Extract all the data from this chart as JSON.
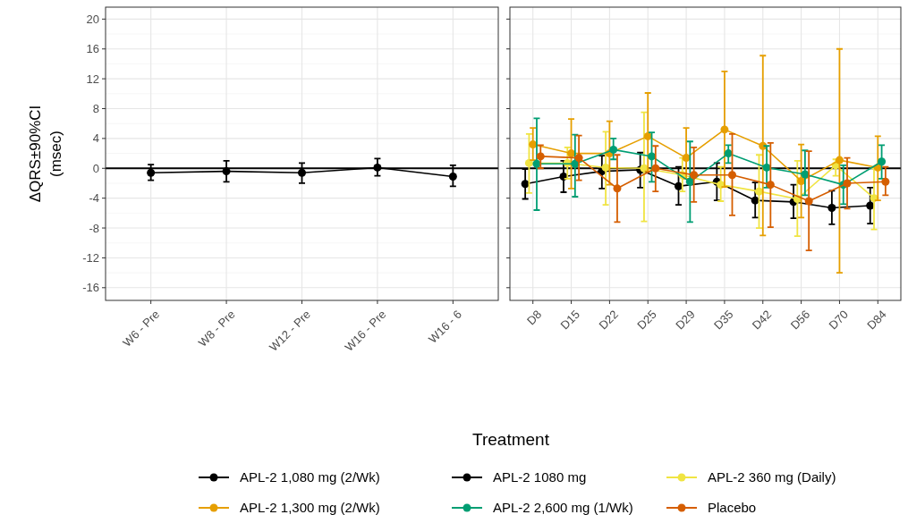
{
  "chart_data": [
    {
      "type": "line",
      "ylabel": "ΔQRS±90%CI (msec)",
      "categories": [
        "W6 - Pre",
        "W8 - Pre",
        "W12 - Pre",
        "W16 - Pre",
        "W16 - 6"
      ],
      "ylim": [
        -17.7,
        21.6
      ],
      "yticks": [
        -16,
        -12,
        -8,
        -4,
        0,
        4,
        8,
        12,
        16,
        20
      ],
      "grid": true,
      "marker": "circle",
      "legend": "bottom",
      "ref_lines": [
        {
          "axis": "y",
          "value": 0,
          "color": "#000000"
        }
      ],
      "series": [
        {
          "name": "APL-2 1080 mg",
          "color": "#000000",
          "values": [
            -0.6,
            -0.4,
            -0.6,
            0.1,
            -1.1
          ],
          "errors": [
            [
              -1.6,
              0.5
            ],
            [
              -1.8,
              1.0
            ],
            [
              -2.0,
              0.7
            ],
            [
              -1.0,
              1.3
            ],
            [
              -2.4,
              0.4
            ]
          ]
        }
      ]
    },
    {
      "type": "line",
      "legend_title": "Treatment",
      "categories": [
        "D8",
        "D15",
        "D22",
        "D25",
        "D29",
        "D35",
        "D42",
        "D56",
        "D70",
        "D84"
      ],
      "ylim": [
        -17.7,
        21.6
      ],
      "yticks": [
        -16,
        -12,
        -8,
        -4,
        0,
        4,
        8,
        12,
        16,
        20
      ],
      "tick_labels": "x",
      "grid": true,
      "marker": "circle",
      "legend": "bottom",
      "ref_lines": [
        {
          "axis": "y",
          "value": 0,
          "color": "#000000"
        }
      ],
      "series": [
        {
          "name": "APL-2 1,080 mg (2/Wk)",
          "color": "#000000",
          "values": [
            -2.1,
            -1.1,
            -0.4,
            -0.2,
            -2.4,
            -1.8,
            -4.3,
            -4.5,
            -5.3,
            -5.0
          ],
          "errors": [
            [
              -4.1,
              -0.1
            ],
            [
              -3.2,
              1.0
            ],
            [
              -2.7,
              1.7
            ],
            [
              -2.6,
              2.1
            ],
            [
              -4.9,
              0.2
            ],
            [
              -4.3,
              0.7
            ],
            [
              -6.6,
              -1.9
            ],
            [
              -6.7,
              -2.2
            ],
            [
              -7.5,
              -3.0
            ],
            [
              -7.4,
              -2.6
            ]
          ]
        },
        {
          "name": "APL-2 360 mg (Daily)",
          "color": "#f0e442",
          "values": [
            0.7,
            0.7,
            0.1,
            0.0,
            -0.9,
            -2.2,
            -3.1,
            -4.1,
            0.4,
            -4.0
          ],
          "errors": [
            [
              -3.3,
              4.6
            ],
            [
              -1.4,
              2.8
            ],
            [
              -4.9,
              4.9
            ],
            [
              -7.1,
              7.5
            ],
            [
              -3.1,
              1.4
            ],
            [
              -4.4,
              0.2
            ],
            [
              -8.0,
              1.8
            ],
            [
              -9.1,
              1.0
            ],
            [
              -1.0,
              1.2
            ],
            [
              -8.2,
              0.0
            ]
          ]
        },
        {
          "name": "APL-2 1,300 mg (2/Wk)",
          "color": "#e69f00",
          "values": [
            3.2,
            2.0,
            2.0,
            4.3,
            1.4,
            5.2,
            3.0,
            -1.7,
            1.1,
            0.1
          ],
          "errors": [
            [
              1.1,
              5.4
            ],
            [
              -2.7,
              6.6
            ],
            [
              -2.2,
              6.3
            ],
            [
              -0.4,
              10.1
            ],
            [
              -1.4,
              5.4
            ],
            [
              -2.5,
              13.0
            ],
            [
              -9.0,
              15.1
            ],
            [
              -6.6,
              3.2
            ],
            [
              -14.0,
              16.0
            ],
            [
              -4.3,
              4.3
            ]
          ]
        },
        {
          "name": "APL-2 2,600 mg (1/Wk)",
          "color": "#009e73",
          "values": [
            0.6,
            0.6,
            2.5,
            1.6,
            -1.8,
            2.0,
            0.1,
            -0.8,
            -2.2,
            0.9
          ],
          "errors": [
            [
              -5.6,
              6.7
            ],
            [
              -3.8,
              4.5
            ],
            [
              1.2,
              4.0
            ],
            [
              -1.8,
              4.8
            ],
            [
              -7.2,
              3.6
            ],
            [
              0.7,
              3.1
            ],
            [
              -2.6,
              3.0
            ],
            [
              -3.6,
              2.4
            ],
            [
              -4.8,
              0.4
            ],
            [
              -1.4,
              3.1
            ]
          ]
        },
        {
          "name": "Placebo",
          "color": "#d55e00",
          "values": [
            1.6,
            1.4,
            -2.7,
            0.0,
            -0.9,
            -0.9,
            -2.2,
            -4.4,
            -2.0,
            -1.8
          ],
          "errors": [
            [
              0.0,
              3.1
            ],
            [
              -1.6,
              4.4
            ],
            [
              -7.2,
              1.8
            ],
            [
              -3.1,
              3.0
            ],
            [
              -4.5,
              2.8
            ],
            [
              -6.3,
              4.6
            ],
            [
              -7.9,
              3.4
            ],
            [
              -11.0,
              2.3
            ],
            [
              -5.4,
              1.4
            ],
            [
              -3.6,
              0.2
            ]
          ]
        }
      ]
    }
  ]
}
